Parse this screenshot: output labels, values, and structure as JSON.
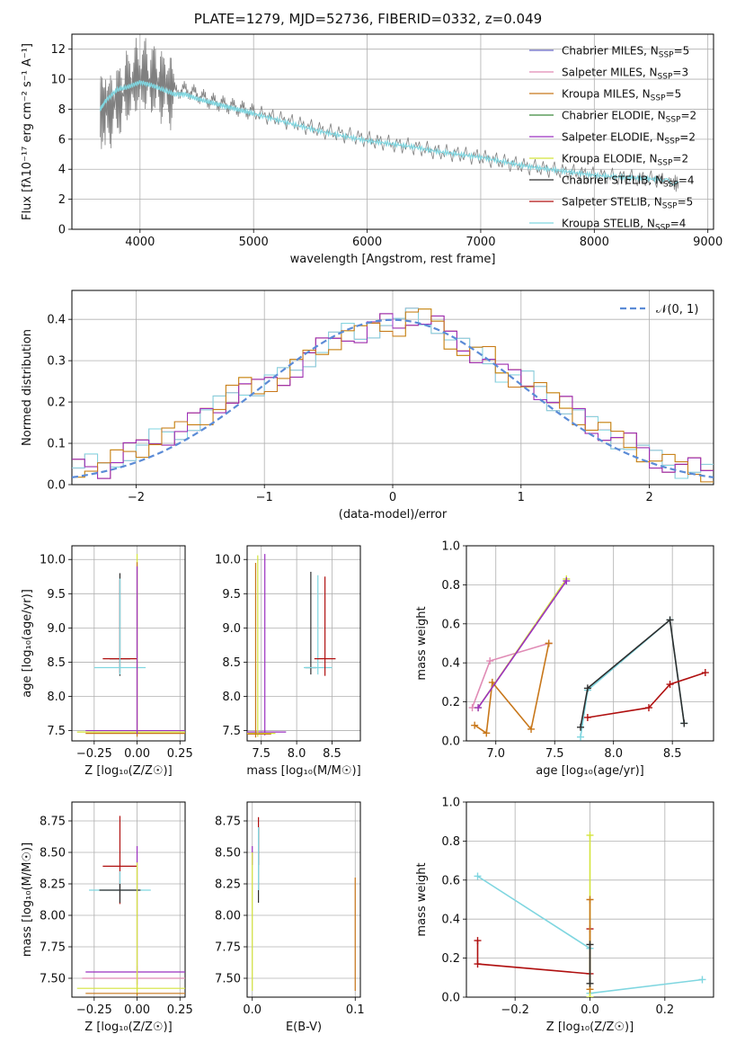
{
  "title": "PLATE=1279, MJD=52736, FIBERID=0332, z=0.049",
  "models": [
    {
      "label": "Chabrier MILES, N$_{SSP}$=5",
      "name": "Chabrier MILES",
      "nssp": "5",
      "color": "#6a6ac8"
    },
    {
      "label": "Salpeter MILES",
      "name": "Salpeter MILES",
      "nssp": "3",
      "color": "#e08bb5"
    },
    {
      "label": "Kroupa MILES",
      "name": "Kroupa MILES",
      "nssp": "5",
      "color": "#c8771a"
    },
    {
      "label": "Chabrier ELODIE",
      "name": "Chabrier ELODIE",
      "nssp": "2",
      "color": "#3c8a3c"
    },
    {
      "label": "Salpeter ELODIE",
      "name": "Salpeter ELODIE",
      "nssp": "2",
      "color": "#9b30c0"
    },
    {
      "label": "Kroupa ELODIE",
      "name": "Kroupa ELODIE",
      "nssp": "2",
      "color": "#d4e43c"
    },
    {
      "label": "Chabrier STELIB",
      "name": "Chabrier STELIB",
      "nssp": "4",
      "color": "#2e2e2e"
    },
    {
      "label": "Salpeter STELIB",
      "name": "Salpeter STELIB",
      "nssp": "5",
      "color": "#b01010"
    },
    {
      "label": "Kroupa STELIB",
      "name": "Kroupa STELIB",
      "nssp": "4",
      "color": "#7fd6e0"
    }
  ],
  "chart_data": [
    {
      "type": "line",
      "panel": "spectrum",
      "xlabel": "wavelength [Angstrom, rest frame]",
      "ylabel": "Flux [f$_\\lambda$10$^{-17}$ erg cm$^{-2}$ s$^{-1}$ A$^{-1}$]",
      "xlim": [
        3400,
        9050
      ],
      "ylim": [
        0,
        13
      ],
      "xticks": [
        "4000",
        "5000",
        "6000",
        "7000",
        "8000",
        "9000"
      ],
      "yticks": [
        "0",
        "2",
        "4",
        "6",
        "8",
        "10",
        "12"
      ],
      "series": [
        {
          "name": "data",
          "color": "#808080",
          "x": [
            3650,
            3700,
            3800,
            3900,
            4000,
            4100,
            4200,
            4300,
            4400,
            4500,
            4600,
            4700,
            4800,
            4900,
            5000,
            5200,
            5400,
            5600,
            5800,
            6000,
            6200,
            6400,
            6600,
            6800,
            7000,
            7200,
            7400,
            7600,
            7800,
            8000,
            8200,
            8400,
            8600,
            8750
          ],
          "y": [
            8.2,
            7.8,
            8.5,
            9.5,
            10.2,
            10.0,
            9.6,
            9.2,
            9.3,
            9.0,
            8.6,
            8.4,
            8.2,
            8.0,
            7.8,
            7.4,
            7.0,
            6.6,
            6.3,
            6.0,
            5.7,
            5.5,
            5.2,
            5.0,
            4.8,
            4.5,
            4.2,
            4.0,
            3.8,
            3.6,
            3.5,
            3.4,
            3.3,
            3.0
          ]
        },
        {
          "name": "model",
          "color": "#7fd6e0",
          "x": [
            3650,
            3700,
            3800,
            3900,
            4000,
            4100,
            4200,
            4300,
            4400,
            4500,
            4600,
            4700,
            4800,
            4900,
            5000,
            5200,
            5400,
            5600,
            5800,
            6000,
            6200,
            6400,
            6600,
            6800,
            7000,
            7200,
            7400,
            7600,
            7800,
            8000,
            8200,
            8400,
            8600,
            8750
          ],
          "y": [
            8.0,
            8.6,
            9.3,
            9.5,
            9.8,
            9.6,
            9.3,
            9.0,
            9.0,
            8.7,
            8.5,
            8.3,
            8.1,
            7.9,
            7.7,
            7.3,
            6.9,
            6.5,
            6.2,
            5.9,
            5.7,
            5.5,
            5.2,
            5.0,
            4.8,
            4.5,
            4.2,
            4.0,
            3.8,
            3.6,
            3.5,
            3.4,
            3.3,
            3.0
          ]
        }
      ]
    },
    {
      "type": "line",
      "panel": "residual-distribution",
      "xlabel": "(data-model)/error",
      "ylabel": "Normed distribution",
      "xlim": [
        -2.5,
        2.5
      ],
      "ylim": [
        0,
        0.47
      ],
      "xticks": [
        "−2",
        "−1",
        "0",
        "1",
        "2"
      ],
      "yticks": [
        "0.0",
        "0.1",
        "0.2",
        "0.3",
        "0.4"
      ],
      "legend": "$\\mathcal{N}(0,1)$",
      "bins": [
        -2.5,
        -2.4,
        -2.3,
        -2.2,
        -2.1,
        -2.0,
        -1.9,
        -1.8,
        -1.7,
        -1.6,
        -1.5,
        -1.4,
        -1.3,
        -1.2,
        -1.1,
        -1.0,
        -0.9,
        -0.8,
        -0.7,
        -0.6,
        -0.5,
        -0.4,
        -0.3,
        -0.2,
        -0.1,
        0.0,
        0.1,
        0.2,
        0.3,
        0.4,
        0.5,
        0.6,
        0.7,
        0.8,
        0.9,
        1.0,
        1.1,
        1.2,
        1.3,
        1.4,
        1.5,
        1.6,
        1.7,
        1.8,
        1.9,
        2.0,
        2.1,
        2.2,
        2.3,
        2.4
      ],
      "hist": [
        0.04,
        0.05,
        0.04,
        0.06,
        0.08,
        0.09,
        0.11,
        0.12,
        0.13,
        0.15,
        0.17,
        0.19,
        0.22,
        0.24,
        0.23,
        0.25,
        0.26,
        0.28,
        0.31,
        0.33,
        0.35,
        0.37,
        0.36,
        0.38,
        0.39,
        0.38,
        0.41,
        0.4,
        0.39,
        0.35,
        0.33,
        0.32,
        0.31,
        0.27,
        0.26,
        0.25,
        0.23,
        0.2,
        0.19,
        0.17,
        0.14,
        0.13,
        0.11,
        0.1,
        0.08,
        0.06,
        0.05,
        0.04,
        0.04,
        0.03
      ]
    },
    {
      "type": "scatter",
      "panel": "age-vs-Z",
      "xlabel": "Z [log$_{10}$(Z/Z$_\\odot$)]",
      "ylabel": "age  [log$_{10}$(age/yr)]",
      "xlim": [
        -0.38,
        0.28
      ],
      "ylim": [
        7.35,
        10.2
      ],
      "xticks": [
        "−0.25",
        "0.00",
        "0.25"
      ],
      "yticks": [
        "7.5",
        "8.0",
        "8.5",
        "9.0",
        "9.5",
        "10.0"
      ],
      "points": [
        {
          "color": "#2e2e2e",
          "x": -0.1,
          "y": 8.55,
          "xerr": 0.06,
          "yerr": [
            0.25,
            1.25
          ]
        },
        {
          "color": "#b01010",
          "x": -0.1,
          "y": 8.55,
          "xerr": 0.1,
          "yerr": [
            0.2,
            1.15
          ]
        },
        {
          "color": "#7fd6e0",
          "x": -0.1,
          "y": 8.42,
          "xerr": 0.15,
          "yerr": [
            0.1,
            1.3
          ]
        },
        {
          "color": "#d4e43c",
          "x": 0.0,
          "y": 7.48,
          "xerr": 0.35,
          "yerr": [
            0.05,
            2.6
          ]
        },
        {
          "color": "#c8771a",
          "x": 0.0,
          "y": 7.46,
          "xerr": 0.3,
          "yerr": [
            0.05,
            2.5
          ]
        },
        {
          "color": "#9b30c0",
          "x": 0.0,
          "y": 7.5,
          "xerr": 0.3,
          "yerr": [
            0.05,
            2.4
          ]
        }
      ]
    },
    {
      "type": "scatter",
      "panel": "age-vs-mass",
      "xlabel": "mass [log$_{10}$(M/M$_\\odot$)]",
      "ylabel": "",
      "xlim": [
        7.3,
        8.9
      ],
      "ylim": [
        7.35,
        10.2
      ],
      "xticks": [
        "7.5",
        "8.0",
        "8.5"
      ],
      "yticks": [
        "7.5",
        "8.0",
        "8.5",
        "9.0",
        "9.5",
        "10.0"
      ],
      "points": [
        {
          "color": "#2e2e2e",
          "x": 8.2,
          "y": 8.42,
          "xerr": 0.08,
          "yerr": [
            0.1,
            1.4
          ]
        },
        {
          "color": "#7fd6e0",
          "x": 8.3,
          "y": 8.42,
          "xerr": 0.2,
          "yerr": [
            0.1,
            1.35
          ]
        },
        {
          "color": "#b01010",
          "x": 8.4,
          "y": 8.55,
          "xerr": 0.15,
          "yerr": [
            0.25,
            1.2
          ]
        },
        {
          "color": "#9b30c0",
          "x": 7.55,
          "y": 7.48,
          "xerr": 0.3,
          "yerr": [
            0.05,
            2.6
          ]
        },
        {
          "color": "#d4e43c",
          "x": 7.45,
          "y": 7.46,
          "xerr": 0.25,
          "yerr": [
            0.05,
            2.6
          ]
        },
        {
          "color": "#c8771a",
          "x": 7.42,
          "y": 7.45,
          "xerr": 0.22,
          "yerr": [
            0.05,
            2.5
          ]
        }
      ]
    },
    {
      "type": "line",
      "panel": "mass-weight-vs-age",
      "xlabel": "age  [log$_{10}$(age/yr)]",
      "ylabel": "mass weight",
      "xlim": [
        6.75,
        8.85
      ],
      "ylim": [
        0,
        1
      ],
      "xticks": [
        "7.0",
        "7.5",
        "8.0",
        "8.5"
      ],
      "yticks": [
        "0.0",
        "0.2",
        "0.4",
        "0.6",
        "0.8",
        "1.0"
      ],
      "series": [
        {
          "color": "#e08bb5",
          "x": [
            6.8,
            6.95,
            7.45
          ],
          "y": [
            0.17,
            0.41,
            0.5
          ]
        },
        {
          "color": "#c8771a",
          "x": [
            6.82,
            6.92,
            6.97,
            7.3,
            7.45
          ],
          "y": [
            0.08,
            0.04,
            0.3,
            0.06,
            0.5
          ]
        },
        {
          "color": "#d4e43c",
          "x": [
            6.85,
            7.6
          ],
          "y": [
            0.17,
            0.83
          ]
        },
        {
          "color": "#9b30c0",
          "x": [
            6.85,
            7.6
          ],
          "y": [
            0.17,
            0.82
          ]
        },
        {
          "color": "#7fd6e0",
          "x": [
            7.72,
            7.78,
            8.48,
            8.6
          ],
          "y": [
            0.02,
            0.26,
            0.62,
            0.09
          ]
        },
        {
          "color": "#2e2e2e",
          "x": [
            7.72,
            7.78,
            8.48,
            8.6
          ],
          "y": [
            0.07,
            0.27,
            0.62,
            0.09
          ]
        },
        {
          "color": "#b01010",
          "x": [
            7.78,
            8.3,
            8.48,
            8.78
          ],
          "y": [
            0.12,
            0.17,
            0.29,
            0.35
          ]
        }
      ]
    },
    {
      "type": "scatter",
      "panel": "mass-vs-Z",
      "xlabel": "Z [log$_{10}$(Z/Z$_\\odot$)]",
      "ylabel": "mass [log$_{10}$(M/M$_\\odot$)]",
      "xlim": [
        -0.38,
        0.28
      ],
      "ylim": [
        7.35,
        8.9
      ],
      "xticks": [
        "−0.25",
        "0.00",
        "0.25"
      ],
      "yticks": [
        "7.50",
        "7.75",
        "8.00",
        "8.25",
        "8.50",
        "8.75"
      ],
      "points": [
        {
          "color": "#b01010",
          "x": -0.1,
          "y": 8.39,
          "xerr": 0.1,
          "yerr": [
            0.3,
            0.4
          ]
        },
        {
          "color": "#7fd6e0",
          "x": -0.1,
          "y": 8.2,
          "xerr": 0.18,
          "yerr": [
            0.05,
            0.15
          ]
        },
        {
          "color": "#2e2e2e",
          "x": -0.1,
          "y": 8.2,
          "xerr": 0.12,
          "yerr": [
            0.1,
            0.05
          ]
        },
        {
          "color": "#9b30c0",
          "x": 0.0,
          "y": 7.55,
          "xerr": 0.3,
          "yerr": [
            0.1,
            1.0
          ]
        },
        {
          "color": "#e08bb5",
          "x": 0.0,
          "y": 7.5,
          "xerr": 0.32,
          "yerr": [
            0.1,
            0.1
          ]
        },
        {
          "color": "#d4e43c",
          "x": 0.0,
          "y": 7.42,
          "xerr": 0.35,
          "yerr": [
            0.05,
            1.0
          ]
        },
        {
          "color": "#c8771a",
          "x": 0.0,
          "y": 7.38,
          "xerr": 0.3,
          "yerr": [
            0.02,
            0.0
          ]
        }
      ]
    },
    {
      "type": "scatter",
      "panel": "mass-vs-EBV",
      "xlabel": "E(B-V)",
      "ylabel": "",
      "xlim": [
        -0.005,
        0.105
      ],
      "ylim": [
        7.35,
        8.9
      ],
      "xticks": [
        "0.0",
        "0.1"
      ],
      "yticks": [
        "7.50",
        "7.75",
        "8.00",
        "8.25",
        "8.50",
        "8.75"
      ],
      "points": [
        {
          "color": "#b01010",
          "x": 0.006,
          "y": 8.6,
          "yerr": [
            0.2,
            0.18
          ]
        },
        {
          "color": "#2e2e2e",
          "x": 0.006,
          "y": 8.4,
          "yerr": [
            0.3,
            0.3
          ]
        },
        {
          "color": "#7fd6e0",
          "x": 0.006,
          "y": 8.5,
          "yerr": [
            0.3,
            0.2
          ]
        },
        {
          "color": "#9b30c0",
          "x": 0.0,
          "y": 8.45,
          "yerr": [
            0.05,
            0.1
          ]
        },
        {
          "color": "#d4e43c",
          "x": 0.0,
          "y": 7.9,
          "yerr": [
            0.5,
            0.6
          ]
        },
        {
          "color": "#c8771a",
          "x": 0.1,
          "y": 7.8,
          "yerr": [
            0.4,
            0.5
          ]
        }
      ]
    },
    {
      "type": "line",
      "panel": "mass-weight-vs-Z",
      "xlabel": "Z [log$_{10}$(Z/Z$_\\odot$)]",
      "ylabel": "mass weight",
      "xlim": [
        -0.33,
        0.33
      ],
      "ylim": [
        0,
        1
      ],
      "xticks": [
        "−0.2",
        "0.0",
        "0.2"
      ],
      "yticks": [
        "0.0",
        "0.2",
        "0.4",
        "0.6",
        "0.8",
        "1.0"
      ],
      "series": [
        {
          "color": "#b01010",
          "x": [
            -0.3,
            -0.3,
            0.0,
            0.0
          ],
          "y": [
            0.29,
            0.17,
            0.12,
            0.35
          ]
        },
        {
          "color": "#7fd6e0",
          "x": [
            -0.3,
            0.0,
            0.0,
            0.3
          ],
          "y": [
            0.62,
            0.25,
            0.02,
            0.09
          ]
        },
        {
          "color": "#d4e43c",
          "x": [
            0.0,
            0.0
          ],
          "y": [
            0.83,
            0.0
          ]
        },
        {
          "color": "#c8771a",
          "x": [
            0.0,
            0.0
          ],
          "y": [
            0.5,
            0.04
          ]
        },
        {
          "color": "#2e2e2e",
          "x": [
            0.0,
            0.0
          ],
          "y": [
            0.27,
            0.07
          ]
        }
      ]
    }
  ]
}
